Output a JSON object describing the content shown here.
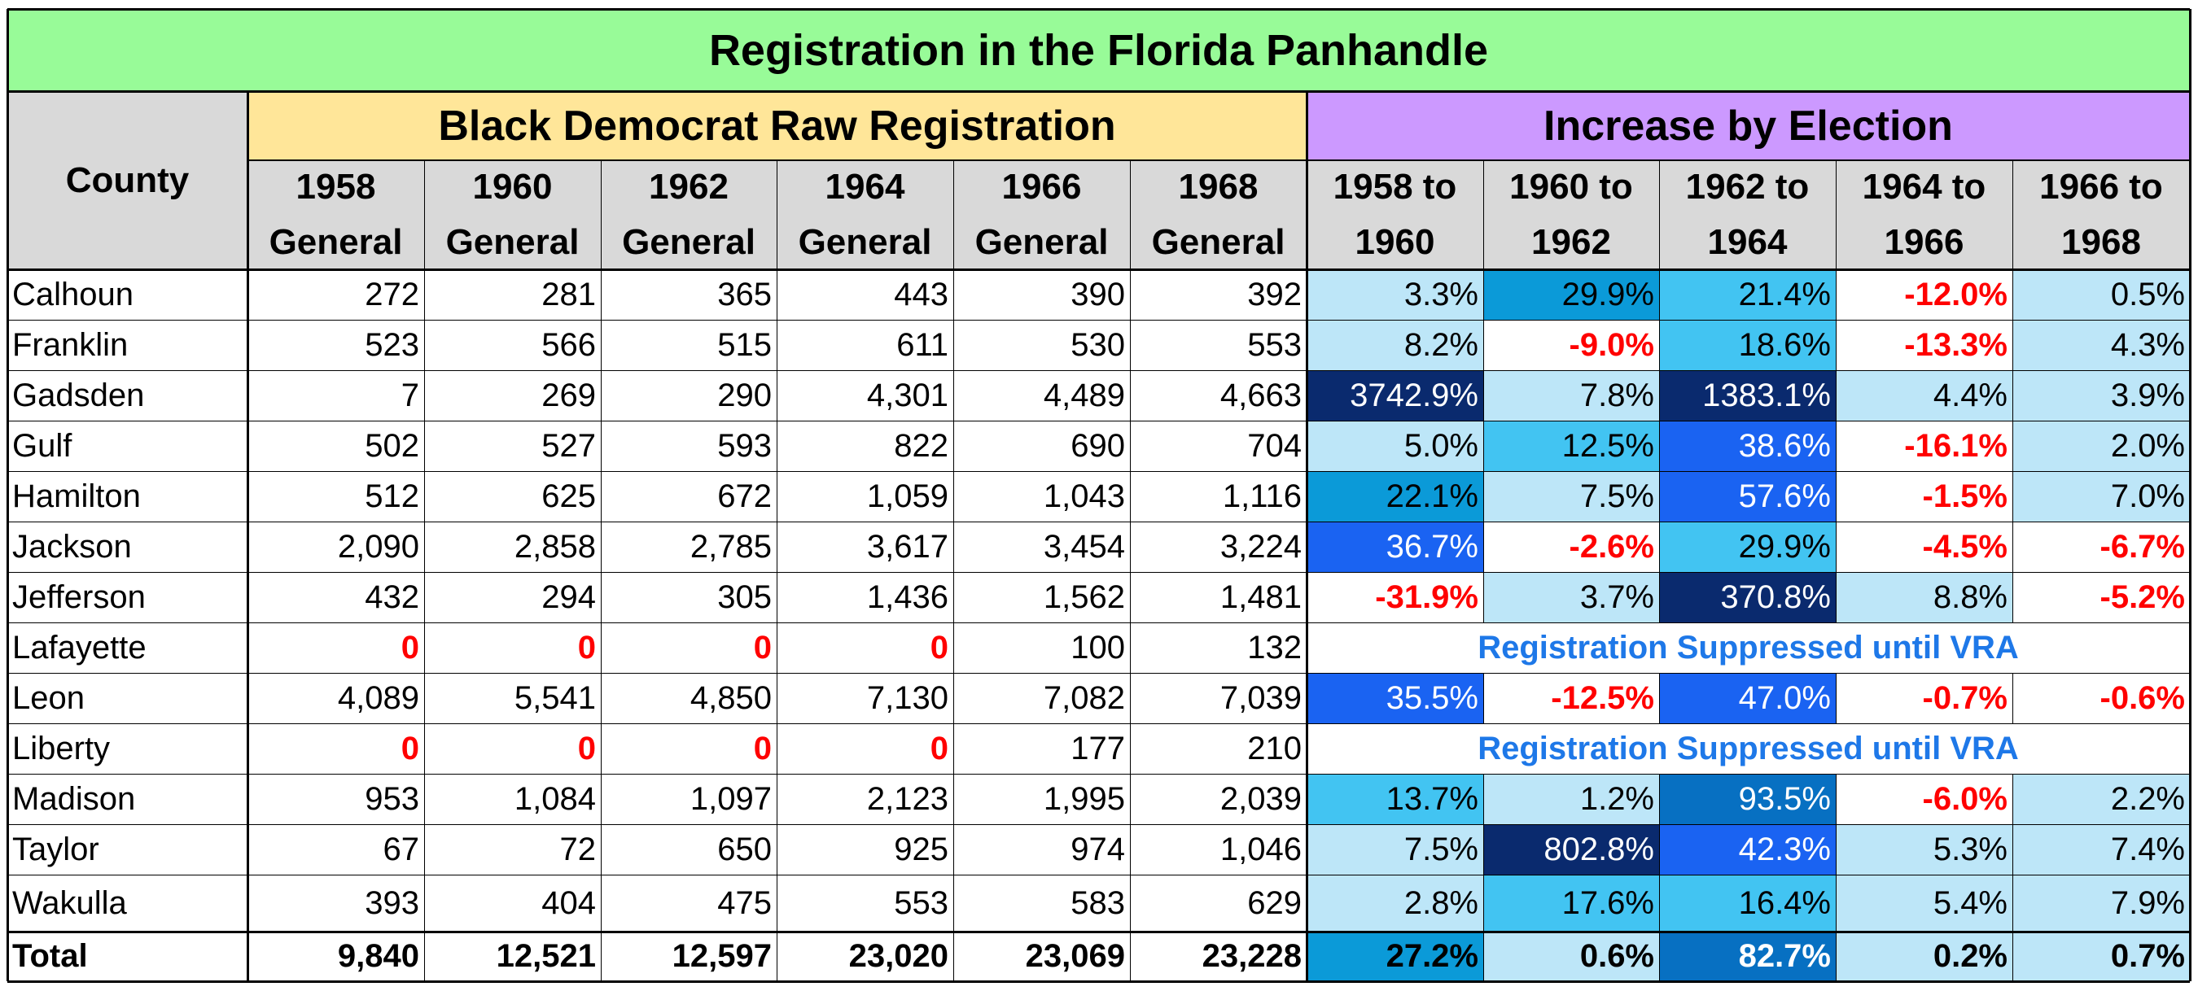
{
  "title": "Registration in the Florida Panhandle",
  "band_raw": "Black Democrat Raw Registration",
  "band_increase": "Increase by Election",
  "county_header": "County",
  "raw_headers": [
    [
      "1958",
      "General"
    ],
    [
      "1960",
      "General"
    ],
    [
      "1962",
      "General"
    ],
    [
      "1964",
      "General"
    ],
    [
      "1966",
      "General"
    ],
    [
      "1968",
      "General"
    ]
  ],
  "inc_headers": [
    [
      "1958 to",
      "1960"
    ],
    [
      "1960 to",
      "1962"
    ],
    [
      "1962 to",
      "1964"
    ],
    [
      "1964 to",
      "1966"
    ],
    [
      "1966 to",
      "1968"
    ]
  ],
  "suppressed_text": "Registration Suppressed until VRA",
  "colors": {
    "title_bg": "#98FB98",
    "raw_band_bg": "#FFE699",
    "increase_band_bg": "#CC99FF",
    "header_bg": "#D9D9D9",
    "negative_text": "#FF0000",
    "suppressed_text": "#1E78E8",
    "heat_levels": [
      "#ffffff",
      "#BDE6F8",
      "#42C4F2",
      "#0B9AD8",
      "#1A63F2",
      "#0770C2",
      "#0A2A6E"
    ]
  },
  "rows": [
    {
      "county": "Calhoun",
      "raw": [
        "272",
        "281",
        "365",
        "443",
        "390",
        "392"
      ],
      "inc": [
        {
          "v": "3.3%",
          "lvl": 1,
          "neg": false
        },
        {
          "v": "29.9%",
          "lvl": 3,
          "neg": false
        },
        {
          "v": "21.4%",
          "lvl": 2,
          "neg": false
        },
        {
          "v": "-12.0%",
          "lvl": 0,
          "neg": true
        },
        {
          "v": "0.5%",
          "lvl": 1,
          "neg": false
        }
      ]
    },
    {
      "county": "Franklin",
      "raw": [
        "523",
        "566",
        "515",
        "611",
        "530",
        "553"
      ],
      "inc": [
        {
          "v": "8.2%",
          "lvl": 1,
          "neg": false
        },
        {
          "v": "-9.0%",
          "lvl": 0,
          "neg": true
        },
        {
          "v": "18.6%",
          "lvl": 2,
          "neg": false
        },
        {
          "v": "-13.3%",
          "lvl": 0,
          "neg": true
        },
        {
          "v": "4.3%",
          "lvl": 1,
          "neg": false
        }
      ]
    },
    {
      "county": "Gadsden",
      "raw": [
        "7",
        "269",
        "290",
        "4,301",
        "4,489",
        "4,663"
      ],
      "inc": [
        {
          "v": "3742.9%",
          "lvl": 6,
          "neg": false
        },
        {
          "v": "7.8%",
          "lvl": 1,
          "neg": false
        },
        {
          "v": "1383.1%",
          "lvl": 6,
          "neg": false
        },
        {
          "v": "4.4%",
          "lvl": 1,
          "neg": false
        },
        {
          "v": "3.9%",
          "lvl": 1,
          "neg": false
        }
      ]
    },
    {
      "county": "Gulf",
      "raw": [
        "502",
        "527",
        "593",
        "822",
        "690",
        "704"
      ],
      "inc": [
        {
          "v": "5.0%",
          "lvl": 1,
          "neg": false
        },
        {
          "v": "12.5%",
          "lvl": 2,
          "neg": false
        },
        {
          "v": "38.6%",
          "lvl": 4,
          "neg": false
        },
        {
          "v": "-16.1%",
          "lvl": 0,
          "neg": true
        },
        {
          "v": "2.0%",
          "lvl": 1,
          "neg": false
        }
      ]
    },
    {
      "county": "Hamilton",
      "raw": [
        "512",
        "625",
        "672",
        "1,059",
        "1,043",
        "1,116"
      ],
      "inc": [
        {
          "v": "22.1%",
          "lvl": 3,
          "neg": false
        },
        {
          "v": "7.5%",
          "lvl": 1,
          "neg": false
        },
        {
          "v": "57.6%",
          "lvl": 4,
          "neg": false
        },
        {
          "v": "-1.5%",
          "lvl": 0,
          "neg": true
        },
        {
          "v": "7.0%",
          "lvl": 1,
          "neg": false
        }
      ]
    },
    {
      "county": "Jackson",
      "raw": [
        "2,090",
        "2,858",
        "2,785",
        "3,617",
        "3,454",
        "3,224"
      ],
      "inc": [
        {
          "v": "36.7%",
          "lvl": 4,
          "neg": false
        },
        {
          "v": "-2.6%",
          "lvl": 0,
          "neg": true
        },
        {
          "v": "29.9%",
          "lvl": 2,
          "neg": false
        },
        {
          "v": "-4.5%",
          "lvl": 0,
          "neg": true
        },
        {
          "v": "-6.7%",
          "lvl": 0,
          "neg": true
        }
      ]
    },
    {
      "county": "Jefferson",
      "raw": [
        "432",
        "294",
        "305",
        "1,436",
        "1,562",
        "1,481"
      ],
      "inc": [
        {
          "v": "-31.9%",
          "lvl": 0,
          "neg": true
        },
        {
          "v": "3.7%",
          "lvl": 1,
          "neg": false
        },
        {
          "v": "370.8%",
          "lvl": 6,
          "neg": false
        },
        {
          "v": "8.8%",
          "lvl": 1,
          "neg": false
        },
        {
          "v": "-5.2%",
          "lvl": 0,
          "neg": true
        }
      ]
    },
    {
      "county": "Lafayette",
      "raw": [
        "0",
        "0",
        "0",
        "0",
        "100",
        "132"
      ],
      "raw_red": [
        true,
        true,
        true,
        true,
        false,
        false
      ],
      "suppressed": true
    },
    {
      "county": "Leon",
      "raw": [
        "4,089",
        "5,541",
        "4,850",
        "7,130",
        "7,082",
        "7,039"
      ],
      "inc": [
        {
          "v": "35.5%",
          "lvl": 4,
          "neg": false
        },
        {
          "v": "-12.5%",
          "lvl": 0,
          "neg": true
        },
        {
          "v": "47.0%",
          "lvl": 4,
          "neg": false
        },
        {
          "v": "-0.7%",
          "lvl": 0,
          "neg": true
        },
        {
          "v": "-0.6%",
          "lvl": 0,
          "neg": true
        }
      ]
    },
    {
      "county": "Liberty",
      "raw": [
        "0",
        "0",
        "0",
        "0",
        "177",
        "210"
      ],
      "raw_red": [
        true,
        true,
        true,
        true,
        false,
        false
      ],
      "suppressed": true
    },
    {
      "county": "Madison",
      "raw": [
        "953",
        "1,084",
        "1,097",
        "2,123",
        "1,995",
        "2,039"
      ],
      "inc": [
        {
          "v": "13.7%",
          "lvl": 2,
          "neg": false
        },
        {
          "v": "1.2%",
          "lvl": 1,
          "neg": false
        },
        {
          "v": "93.5%",
          "lvl": 5,
          "neg": false
        },
        {
          "v": "-6.0%",
          "lvl": 0,
          "neg": true
        },
        {
          "v": "2.2%",
          "lvl": 1,
          "neg": false
        }
      ]
    },
    {
      "county": "Taylor",
      "raw": [
        "67",
        "72",
        "650",
        "925",
        "974",
        "1,046"
      ],
      "inc": [
        {
          "v": "7.5%",
          "lvl": 1,
          "neg": false
        },
        {
          "v": "802.8%",
          "lvl": 6,
          "neg": false
        },
        {
          "v": "42.3%",
          "lvl": 4,
          "neg": false
        },
        {
          "v": "5.3%",
          "lvl": 1,
          "neg": false
        },
        {
          "v": "7.4%",
          "lvl": 1,
          "neg": false
        }
      ]
    },
    {
      "county": "Wakulla",
      "raw": [
        "393",
        "404",
        "475",
        "553",
        "583",
        "629"
      ],
      "inc": [
        {
          "v": "2.8%",
          "lvl": 1,
          "neg": false
        },
        {
          "v": "17.6%",
          "lvl": 2,
          "neg": false
        },
        {
          "v": "16.4%",
          "lvl": 2,
          "neg": false
        },
        {
          "v": "5.4%",
          "lvl": 1,
          "neg": false
        },
        {
          "v": "7.9%",
          "lvl": 1,
          "neg": false
        }
      ]
    }
  ],
  "total": {
    "label": "Total",
    "raw": [
      "9,840",
      "12,521",
      "12,597",
      "23,020",
      "23,069",
      "23,228"
    ],
    "inc": [
      {
        "v": "27.2%",
        "lvl": 3,
        "neg": false
      },
      {
        "v": "0.6%",
        "lvl": 1,
        "neg": false
      },
      {
        "v": "82.7%",
        "lvl": 5,
        "neg": false
      },
      {
        "v": "0.2%",
        "lvl": 1,
        "neg": false
      },
      {
        "v": "0.7%",
        "lvl": 1,
        "neg": false
      }
    ]
  }
}
